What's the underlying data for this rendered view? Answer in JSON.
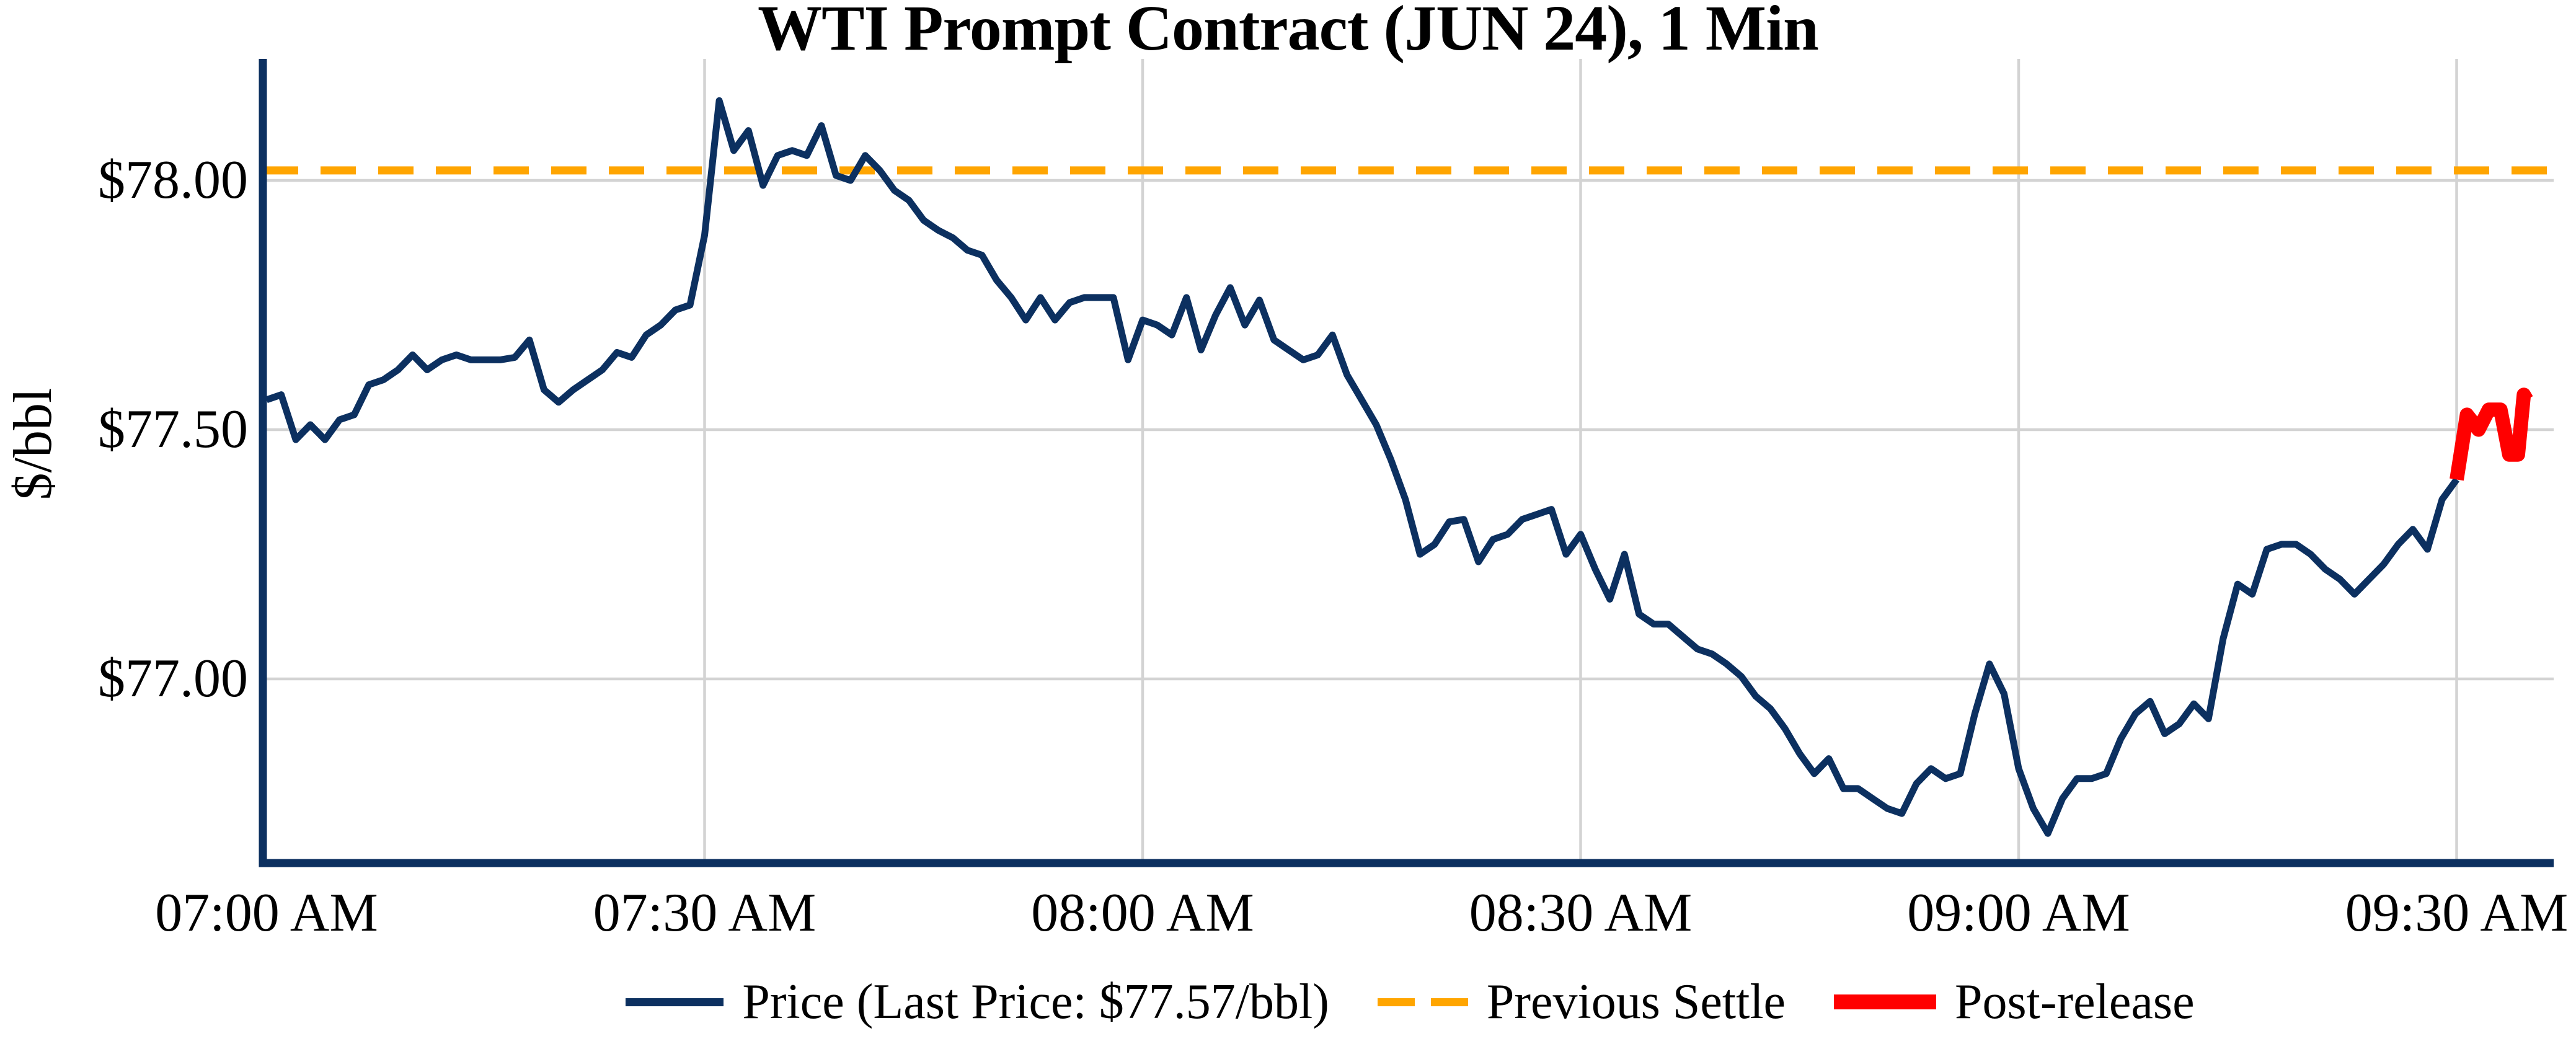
{
  "title": "WTI Prompt Contract (JUN 24), 1 Min",
  "chart_data": {
    "type": "line",
    "title": "WTI Prompt Contract (JUN 24), 1 Min",
    "xlabel": "",
    "ylabel": "$/bbl",
    "background": "#ffffff",
    "grid": true,
    "grid_color": "#d3d3d3",
    "axis_color": "#0c3060",
    "settle_color": "#ffa500",
    "previous_settle": 78.02,
    "last_price": 77.57,
    "ylim": [
      76.63,
      78.25
    ],
    "xlim_minutes_from_0700": [
      0,
      156.6
    ],
    "x_tick_minutes": [
      0,
      30,
      60,
      90,
      120,
      150
    ],
    "x_tick_labels": [
      "07:00 AM",
      "07:30 AM",
      "08:00 AM",
      "08:30 AM",
      "09:00 AM",
      "09:30 AM"
    ],
    "y_tick_values": [
      78.0,
      77.5,
      77.0
    ],
    "y_tick_labels": [
      "$78.00",
      "$77.50",
      "$77.00"
    ],
    "legend_position": "bottom-center",
    "legend": [
      {
        "label": "Price (Last Price: $77.57/bbl)",
        "swatch": "line",
        "color": "#0c3060"
      },
      {
        "label": "Previous Settle",
        "swatch": "dash",
        "color": "#ffa500"
      },
      {
        "label": "Post-release",
        "swatch": "thick",
        "color": "#ff0000"
      }
    ],
    "series": [
      {
        "name": "Price",
        "color": "#0c3060",
        "width": 11,
        "points": [
          [
            0,
            77.56
          ],
          [
            1,
            77.57
          ],
          [
            2,
            77.48
          ],
          [
            3,
            77.51
          ],
          [
            4,
            77.48
          ],
          [
            5,
            77.52
          ],
          [
            6,
            77.53
          ],
          [
            7,
            77.59
          ],
          [
            8,
            77.6
          ],
          [
            9,
            77.62
          ],
          [
            10,
            77.65
          ],
          [
            11,
            77.62
          ],
          [
            12,
            77.64
          ],
          [
            13,
            77.65
          ],
          [
            14,
            77.64
          ],
          [
            15,
            77.64
          ],
          [
            16,
            77.64
          ],
          [
            17,
            77.645
          ],
          [
            18,
            77.68
          ],
          [
            19,
            77.58
          ],
          [
            20,
            77.555
          ],
          [
            21,
            77.58
          ],
          [
            22,
            77.6
          ],
          [
            23,
            77.62
          ],
          [
            24,
            77.655
          ],
          [
            25,
            77.645
          ],
          [
            26,
            77.69
          ],
          [
            27,
            77.71
          ],
          [
            28,
            77.74
          ],
          [
            29,
            77.75
          ],
          [
            30,
            77.89
          ],
          [
            31,
            78.16
          ],
          [
            32,
            78.06
          ],
          [
            33,
            78.1
          ],
          [
            34,
            77.99
          ],
          [
            35,
            78.05
          ],
          [
            36,
            78.06
          ],
          [
            37,
            78.05
          ],
          [
            38,
            78.11
          ],
          [
            39,
            78.01
          ],
          [
            40,
            78.0
          ],
          [
            41,
            78.05
          ],
          [
            42,
            78.02
          ],
          [
            43,
            77.98
          ],
          [
            44,
            77.96
          ],
          [
            45,
            77.92
          ],
          [
            46,
            77.9
          ],
          [
            47,
            77.885
          ],
          [
            48,
            77.86
          ],
          [
            49,
            77.85
          ],
          [
            50,
            77.8
          ],
          [
            51,
            77.765
          ],
          [
            52,
            77.72
          ],
          [
            53,
            77.765
          ],
          [
            54,
            77.72
          ],
          [
            55,
            77.755
          ],
          [
            56,
            77.765
          ],
          [
            57,
            77.765
          ],
          [
            58,
            77.765
          ],
          [
            59,
            77.64
          ],
          [
            60,
            77.72
          ],
          [
            61,
            77.71
          ],
          [
            62,
            77.69
          ],
          [
            63,
            77.765
          ],
          [
            64,
            77.66
          ],
          [
            65,
            77.73
          ],
          [
            66,
            77.785
          ],
          [
            67,
            77.71
          ],
          [
            68,
            77.76
          ],
          [
            69,
            77.68
          ],
          [
            70,
            77.66
          ],
          [
            71,
            77.64
          ],
          [
            72,
            77.65
          ],
          [
            73,
            77.69
          ],
          [
            74,
            77.61
          ],
          [
            75,
            77.56
          ],
          [
            76,
            77.51
          ],
          [
            77,
            77.44
          ],
          [
            78,
            77.36
          ],
          [
            79,
            77.25
          ],
          [
            80,
            77.27
          ],
          [
            81,
            77.315
          ],
          [
            82,
            77.32
          ],
          [
            83,
            77.235
          ],
          [
            84,
            77.28
          ],
          [
            85,
            77.29
          ],
          [
            86,
            77.32
          ],
          [
            87,
            77.33
          ],
          [
            88,
            77.34
          ],
          [
            89,
            77.25
          ],
          [
            90,
            77.29
          ],
          [
            91,
            77.22
          ],
          [
            92,
            77.16
          ],
          [
            93,
            77.25
          ],
          [
            94,
            77.13
          ],
          [
            95,
            77.11
          ],
          [
            96,
            77.11
          ],
          [
            97,
            77.085
          ],
          [
            98,
            77.06
          ],
          [
            99,
            77.05
          ],
          [
            100,
            77.03
          ],
          [
            101,
            77.005
          ],
          [
            102,
            76.965
          ],
          [
            103,
            76.94
          ],
          [
            104,
            76.9
          ],
          [
            105,
            76.85
          ],
          [
            106,
            76.81
          ],
          [
            107,
            76.84
          ],
          [
            108,
            76.78
          ],
          [
            109,
            76.78
          ],
          [
            110,
            76.76
          ],
          [
            111,
            76.74
          ],
          [
            112,
            76.73
          ],
          [
            113,
            76.79
          ],
          [
            114,
            76.82
          ],
          [
            115,
            76.8
          ],
          [
            116,
            76.81
          ],
          [
            117,
            76.93
          ],
          [
            118,
            77.03
          ],
          [
            119,
            76.97
          ],
          [
            120,
            76.82
          ],
          [
            121,
            76.74
          ],
          [
            122,
            76.69
          ],
          [
            123,
            76.76
          ],
          [
            124,
            76.8
          ],
          [
            125,
            76.8
          ],
          [
            126,
            76.81
          ],
          [
            127,
            76.88
          ],
          [
            128,
            76.93
          ],
          [
            129,
            76.955
          ],
          [
            130,
            76.89
          ],
          [
            131,
            76.91
          ],
          [
            132,
            76.95
          ],
          [
            133,
            76.92
          ],
          [
            134,
            77.08
          ],
          [
            135,
            77.19
          ],
          [
            136,
            77.17
          ],
          [
            137,
            77.26
          ],
          [
            138,
            77.27
          ],
          [
            139,
            77.27
          ],
          [
            140,
            77.25
          ],
          [
            141,
            77.22
          ],
          [
            142,
            77.2
          ],
          [
            143,
            77.17
          ],
          [
            144,
            77.2
          ],
          [
            145,
            77.23
          ],
          [
            146,
            77.27
          ],
          [
            147,
            77.3
          ],
          [
            148,
            77.26
          ],
          [
            149,
            77.36
          ],
          [
            150,
            77.4
          ]
        ]
      },
      {
        "name": "Post-release",
        "color": "#ff0000",
        "width": 23,
        "points": [
          [
            150,
            77.4
          ],
          [
            150.7,
            77.53
          ],
          [
            151.5,
            77.5
          ],
          [
            152.2,
            77.54
          ],
          [
            153.0,
            77.54
          ],
          [
            153.6,
            77.45
          ],
          [
            154.2,
            77.45
          ],
          [
            154.6,
            77.57
          ],
          [
            154.8,
            77.56
          ]
        ]
      }
    ]
  }
}
